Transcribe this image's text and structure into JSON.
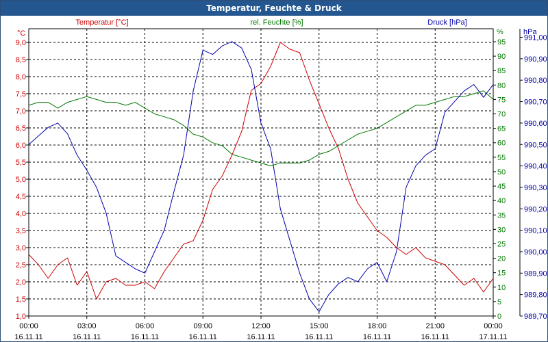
{
  "chart_data": {
    "type": "line",
    "title": "Temperatur, Feuchte & Druck",
    "x": [
      "00:00",
      "00:30",
      "01:00",
      "01:30",
      "02:00",
      "02:30",
      "03:00",
      "03:30",
      "04:00",
      "04:30",
      "05:00",
      "05:30",
      "06:00",
      "06:30",
      "07:00",
      "07:30",
      "08:00",
      "08:30",
      "09:00",
      "09:30",
      "10:00",
      "10:30",
      "11:00",
      "11:30",
      "12:00",
      "12:30",
      "13:00",
      "13:30",
      "14:00",
      "14:30",
      "15:00",
      "15:30",
      "16:00",
      "16:30",
      "17:00",
      "17:30",
      "18:00",
      "18:30",
      "19:00",
      "19:30",
      "20:00",
      "20:30",
      "21:00",
      "21:30",
      "22:00",
      "22:30",
      "23:00",
      "23:30",
      "00:00"
    ],
    "x_tick_labels": [
      {
        "time": "00:00",
        "date": "16.11.11"
      },
      {
        "time": "03:00",
        "date": "16.11.11"
      },
      {
        "time": "06:00",
        "date": "16.11.11"
      },
      {
        "time": "09:00",
        "date": "16.11.11"
      },
      {
        "time": "12:00",
        "date": "16.11.11"
      },
      {
        "time": "15:00",
        "date": "16.11.11"
      },
      {
        "time": "18:00",
        "date": "16.11.11"
      },
      {
        "time": "21:00",
        "date": "16.11.11"
      },
      {
        "time": "00:00",
        "date": "17.11.11"
      }
    ],
    "series": [
      {
        "name": "Temperatur [°C]",
        "axis": "left",
        "color": "#cc0000",
        "values": [
          2.8,
          2.5,
          2.1,
          2.5,
          2.7,
          1.9,
          2.3,
          1.5,
          2.0,
          2.1,
          1.9,
          1.9,
          2.0,
          1.8,
          2.3,
          2.7,
          3.1,
          3.2,
          3.8,
          4.7,
          5.1,
          5.7,
          6.4,
          7.6,
          7.8,
          8.3,
          9.0,
          8.8,
          8.7,
          7.9,
          7.2,
          6.5,
          5.9,
          5.0,
          4.3,
          3.9,
          3.5,
          3.3,
          3.0,
          2.8,
          3.0,
          2.7,
          2.6,
          2.5,
          2.2,
          1.9,
          2.1,
          1.7,
          2.1
        ]
      },
      {
        "name": "rel. Feuchte [%]",
        "axis": "right-inner",
        "color": "#007700",
        "values": [
          73,
          74,
          74,
          72,
          74,
          75,
          76,
          75,
          74,
          74,
          73,
          74,
          72,
          70,
          69,
          68,
          66,
          63,
          62,
          60,
          59,
          56,
          55,
          54,
          53,
          52,
          53,
          53,
          53,
          54,
          56,
          57,
          59,
          61,
          63,
          64,
          65,
          67,
          69,
          71,
          73,
          73,
          74,
          75,
          76,
          76,
          77,
          78,
          75
        ]
      },
      {
        "name": "Druck [hPa]",
        "axis": "right-outer",
        "color": "#0000aa",
        "values": [
          990.5,
          990.54,
          990.58,
          990.6,
          990.55,
          990.45,
          990.38,
          990.3,
          990.18,
          989.98,
          989.95,
          989.92,
          989.9,
          990.0,
          990.1,
          990.28,
          990.45,
          990.75,
          990.94,
          990.92,
          990.96,
          990.98,
          990.95,
          990.85,
          990.6,
          990.48,
          990.2,
          990.05,
          989.9,
          989.78,
          989.72,
          989.8,
          989.85,
          989.88,
          989.86,
          989.92,
          989.95,
          989.86,
          990.0,
          990.3,
          990.4,
          990.45,
          990.48,
          990.65,
          990.7,
          990.75,
          990.78,
          990.72,
          990.78
        ]
      }
    ],
    "axes": {
      "left": {
        "label": "°C",
        "series_label": "Temperatur [°C]",
        "min": 1.0,
        "max": 9.0,
        "max_extent": 9.4,
        "ticks": [
          "1,0",
          "1,5",
          "2,0",
          "2,5",
          "3,0",
          "3,5",
          "4,0",
          "4,5",
          "5,0",
          "5,5",
          "6,0",
          "6,5",
          "7,0",
          "7,5",
          "8,0",
          "8,5",
          "9,0"
        ],
        "color": "#cc0000"
      },
      "right_inner": {
        "label": "%",
        "series_label": "rel. Feuchte [%]",
        "min": 0,
        "max": 95,
        "max_extent": 99.5,
        "ticks": [
          "0",
          "5",
          "10",
          "15",
          "20",
          "25",
          "30",
          "35",
          "40",
          "45",
          "50",
          "55",
          "60",
          "65",
          "70",
          "75",
          "80",
          "85",
          "90",
          "95"
        ],
        "color": "#007700"
      },
      "right_outer": {
        "label": "hPa",
        "series_label": "Druck [hPa]",
        "min": 989.7,
        "max": 991.0,
        "max_extent": 991.04,
        "ticks": [
          "989,70",
          "989,80",
          "989,90",
          "990,00",
          "990,10",
          "990,20",
          "990,30",
          "990,40",
          "990,50",
          "990,60",
          "990,70",
          "990,80",
          "990,90",
          "991,00"
        ],
        "color": "#0000aa"
      }
    },
    "grid": true,
    "grid_style": "dashed",
    "colors": {
      "title_bar": "#24568f",
      "title_text": "#ffffff",
      "grid": "#000000",
      "axis": "#000000"
    }
  }
}
